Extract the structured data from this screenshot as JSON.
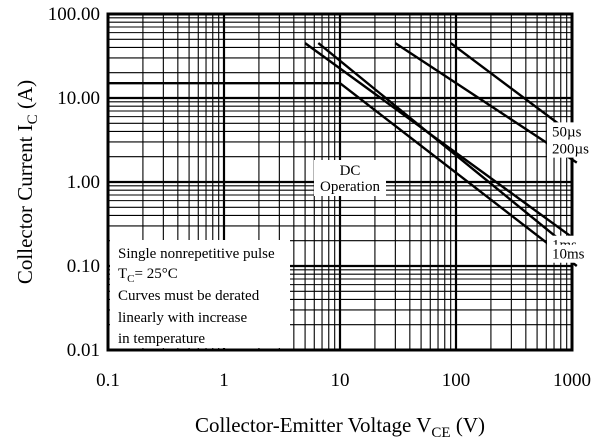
{
  "chart_data": {
    "type": "line",
    "title": "",
    "xlabel": "Collector-Emitter Voltage",
    "xlabel_symbol": "V",
    "xlabel_sub": "CE",
    "xlabel_unit": "(V)",
    "ylabel": "Collector Current",
    "ylabel_symbol": "I",
    "ylabel_sub": "C",
    "ylabel_unit": "(A)",
    "x_scale": "log",
    "y_scale": "log",
    "xlim": [
      0.1,
      1000
    ],
    "ylim": [
      0.01,
      100
    ],
    "x_tick_labels": [
      "0.1",
      "1",
      "10",
      "100",
      "1000"
    ],
    "y_tick_labels": [
      "0.01",
      "0.10",
      "1.00",
      "10.00",
      "100.00"
    ],
    "grid": true,
    "series": [
      {
        "name": "50µs",
        "points": [
          [
            90,
            45
          ],
          [
            1100,
            3.4
          ]
        ]
      },
      {
        "name": "200µs",
        "points": [
          [
            30,
            45
          ],
          [
            1100,
            1.7
          ]
        ]
      },
      {
        "name": "1ms",
        "points": [
          [
            5,
            45
          ],
          [
            1100,
            0.2
          ]
        ]
      },
      {
        "name": "10ms",
        "points": [
          [
            6.5,
            45
          ],
          [
            1100,
            0.14
          ]
        ]
      },
      {
        "name": "DC Operation",
        "points": [
          [
            0.1,
            15
          ],
          [
            10,
            15
          ],
          [
            1100,
            0.1
          ]
        ]
      }
    ],
    "annotations": {
      "dc_line1": "DC",
      "dc_line2": "Operation",
      "note_line1": "Single nonrepetitive pulse",
      "note_tc_symbol": "T",
      "note_tc_sub": "C",
      "note_tc_value": "= 25°C",
      "note_line3": "Curves must be derated",
      "note_line4": "linearly with increase",
      "note_line5": "in temperature"
    },
    "series_labels": [
      {
        "text": "50µs",
        "value_x": 1100,
        "value_y": 3.4
      },
      {
        "text": "200µs",
        "value_x": 1100,
        "value_y": 1.7
      },
      {
        "text": "1ms",
        "value_x": 1100,
        "value_y": 0.2
      },
      {
        "text": "10ms",
        "value_x": 1100,
        "value_y": 0.14
      }
    ]
  }
}
